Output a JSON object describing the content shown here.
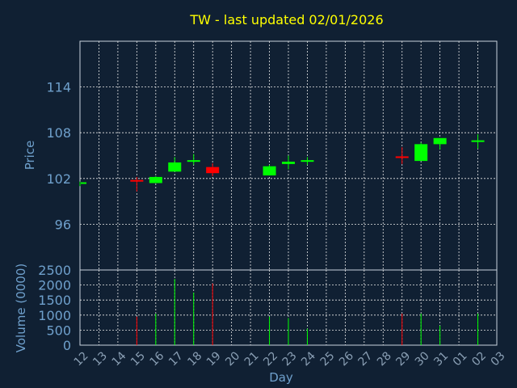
{
  "chart_data": {
    "title": "TW - last updated 02/01/2026",
    "type": "candlestick",
    "price_panel": {
      "ylabel": "Price",
      "ylim": [
        90,
        120
      ],
      "yticks": [
        96,
        102,
        108,
        114
      ]
    },
    "volume_panel": {
      "ylabel": "Volume (0000)",
      "ylim": [
        0,
        2500
      ],
      "yticks": [
        0,
        500,
        1000,
        1500,
        2000,
        2500
      ]
    },
    "xlabel": "Day",
    "x_ticks": [
      "12",
      "13",
      "14",
      "15",
      "16",
      "17",
      "18",
      "19",
      "20",
      "21",
      "22",
      "23",
      "24",
      "25",
      "26",
      "27",
      "28",
      "29",
      "30",
      "31",
      "01",
      "02",
      "03"
    ],
    "candles": [
      {
        "day": "12",
        "open": 101.3,
        "high": 101.6,
        "low": 101.0,
        "close": 101.5,
        "volume": 0
      },
      {
        "day": "15",
        "open": 101.8,
        "high": 102.2,
        "low": 100.3,
        "close": 101.6,
        "volume": 950
      },
      {
        "day": "16",
        "open": 101.4,
        "high": 102.3,
        "low": 101.4,
        "close": 102.2,
        "volume": 1050
      },
      {
        "day": "17",
        "open": 102.9,
        "high": 104.8,
        "low": 102.9,
        "close": 104.1,
        "volume": 2200
      },
      {
        "day": "18",
        "open": 104.2,
        "high": 105.2,
        "low": 103.8,
        "close": 104.4,
        "volume": 1750
      },
      {
        "day": "19",
        "open": 103.5,
        "high": 104.0,
        "low": 102.3,
        "close": 102.7,
        "volume": 2050
      },
      {
        "day": "22",
        "open": 102.4,
        "high": 103.8,
        "low": 102.4,
        "close": 103.6,
        "volume": 950
      },
      {
        "day": "23",
        "open": 103.9,
        "high": 105.0,
        "low": 103.2,
        "close": 104.2,
        "volume": 900
      },
      {
        "day": "24",
        "open": 104.2,
        "high": 104.8,
        "low": 103.8,
        "close": 104.4,
        "volume": 550
      },
      {
        "day": "29",
        "open": 104.9,
        "high": 106.1,
        "low": 103.9,
        "close": 104.7,
        "volume": 1050
      },
      {
        "day": "30",
        "open": 104.3,
        "high": 106.7,
        "low": 104.3,
        "close": 106.5,
        "volume": 1050
      },
      {
        "day": "31",
        "open": 106.5,
        "high": 107.3,
        "low": 105.8,
        "close": 107.3,
        "volume": 650
      },
      {
        "day": "02",
        "open": 106.8,
        "high": 107.8,
        "low": 105.9,
        "close": 107.0,
        "volume": 1050
      }
    ]
  },
  "colors": {
    "background": "#102033",
    "grid": "#e8e8e8",
    "axis_text": "#6fa0cc",
    "title": "#ffff00",
    "up": "#00ff00",
    "down": "#ff0000"
  }
}
